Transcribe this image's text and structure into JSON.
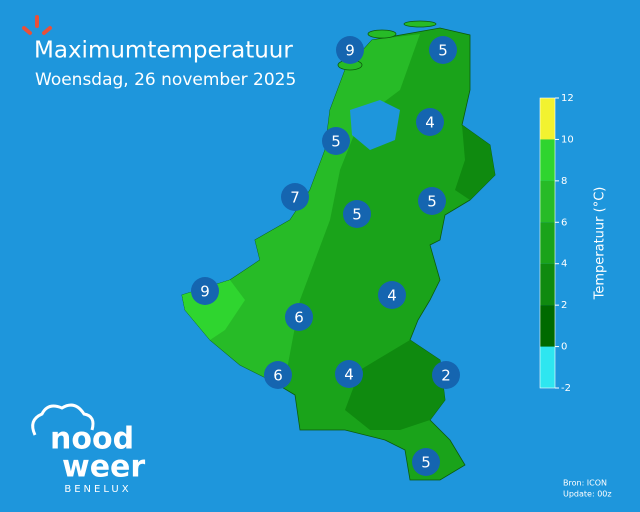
{
  "header": {
    "title": "Maximumtemperatuur",
    "subtitle": "Woensdag, 26 november 2025"
  },
  "markers": [
    9,
    5,
    4,
    5,
    7,
    5,
    5,
    9,
    4,
    6,
    6,
    4,
    2,
    5
  ],
  "colorbar": {
    "label": "Temperatuur (°C)",
    "ticks": [
      -2,
      0,
      2,
      4,
      6,
      8,
      10,
      12
    ],
    "colors": [
      "#2ee6f0",
      "#006a00",
      "#0f8a0f",
      "#1aa31a",
      "#27bb27",
      "#2fd52f",
      "#f2f230"
    ]
  },
  "logo": {
    "line1": "nood",
    "line2": "weer",
    "tagline": "BENELUX"
  },
  "source": {
    "line1": "Bron: ICON",
    "line2": "Update: 00z"
  }
}
